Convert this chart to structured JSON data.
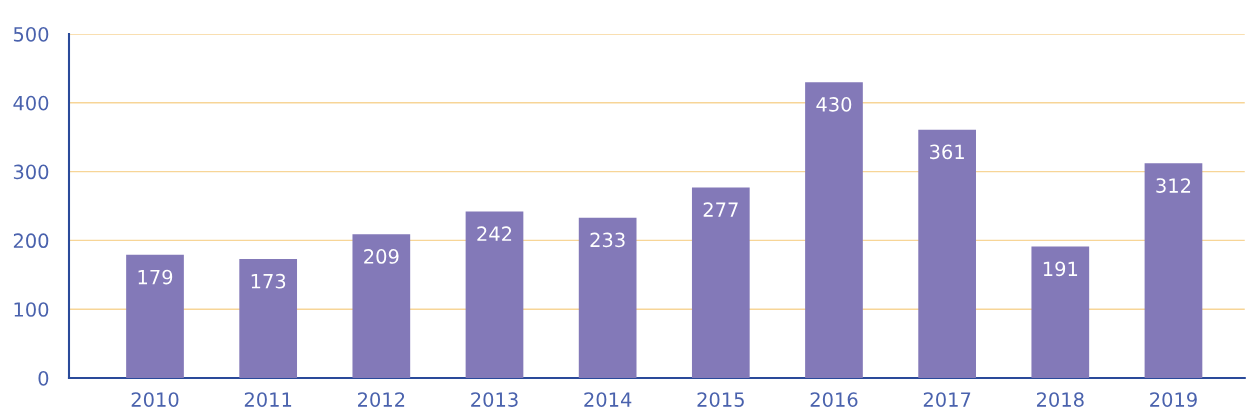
{
  "chart_data": {
    "type": "bar",
    "categories": [
      "2010",
      "2011",
      "2012",
      "2013",
      "2014",
      "2015",
      "2016",
      "2017",
      "2018",
      "2019"
    ],
    "values": [
      179,
      173,
      209,
      242,
      233,
      277,
      430,
      361,
      191,
      312
    ],
    "color": "#8379b8",
    "ylim": [
      0,
      500
    ],
    "yticks": [
      0,
      100,
      200,
      300,
      400,
      500
    ],
    "grid": "y",
    "data_labels": true,
    "legend": false
  }
}
